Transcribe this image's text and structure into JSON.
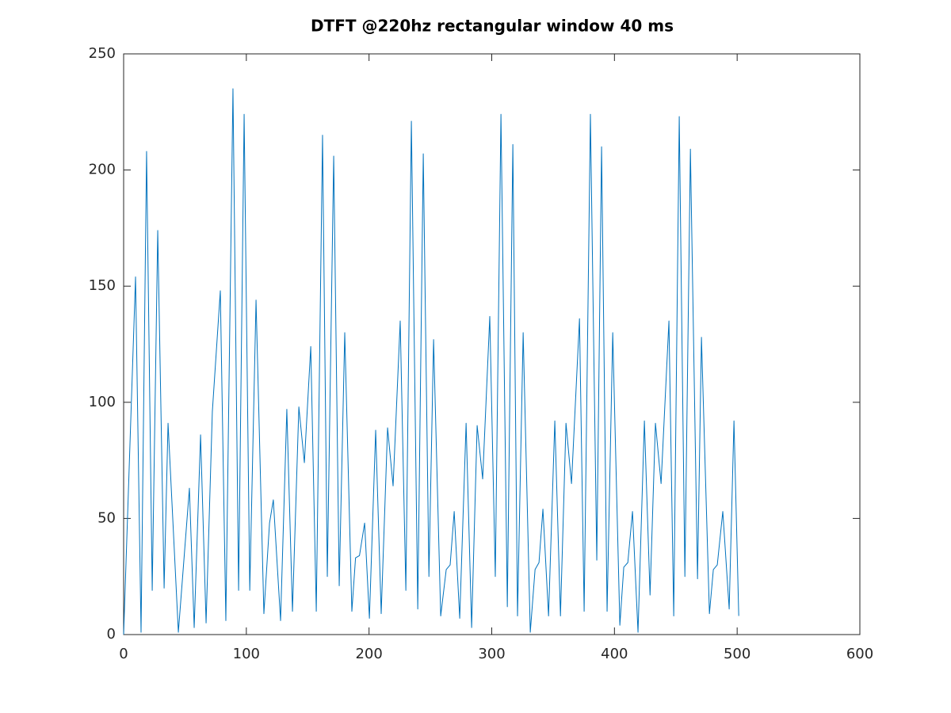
{
  "chart_data": {
    "type": "line",
    "title": "DTFT @220hz rectangular window 40 ms",
    "xlim": [
      0,
      600
    ],
    "xticks": [
      0,
      100,
      200,
      300,
      400,
      500,
      600
    ],
    "ylim": [
      0,
      250
    ],
    "yticks": [
      0,
      50,
      100,
      150,
      200,
      250
    ],
    "grid": false,
    "series": [
      {
        "color": "#0072bd",
        "x": [
          0,
          9.7,
          14.2,
          18.7,
          23.3,
          27.8,
          33,
          36.2,
          44.6,
          53.6,
          57.5,
          62.7,
          67.2,
          72.3,
          78.8,
          83.3,
          89.1,
          93.7,
          98.2,
          102.8,
          107.9,
          114.3,
          118.9,
          122,
          127.9,
          133,
          137.6,
          142.8,
          147.3,
          152.5,
          157,
          162.1,
          166,
          171.2,
          175.7,
          180.2,
          186,
          189,
          192.2,
          196.4,
          200.3,
          205.4,
          209.9,
          215.1,
          219.6,
          225.4,
          230,
          234.5,
          239.7,
          244.2,
          248.8,
          252.6,
          258.4,
          262.9,
          266.1,
          269.4,
          273.9,
          279.1,
          283.6,
          288.1,
          292.6,
          298.4,
          302.9,
          307.5,
          312.7,
          317.2,
          321,
          325.6,
          331.4,
          335.3,
          338.5,
          341.7,
          346.3,
          351.4,
          356,
          360.5,
          365,
          371.5,
          375.3,
          380.4,
          385.6,
          389.5,
          394,
          398.6,
          404.4,
          407.6,
          410.9,
          414.7,
          419.2,
          424.4,
          429,
          433.4,
          438,
          444.4,
          448.3,
          452.8,
          457.4,
          461.9,
          467.7,
          470.9,
          477.4,
          480.6,
          483.8,
          488.3,
          493.5,
          497.4,
          501.3
        ],
        "values": [
          0,
          154,
          1,
          208,
          19,
          174,
          20,
          91,
          1,
          63,
          3,
          86,
          5,
          96,
          148,
          6,
          235,
          19,
          224,
          19,
          144,
          9,
          48,
          58,
          6,
          97,
          10,
          98,
          74,
          124,
          10,
          215,
          25,
          206,
          21,
          130,
          10,
          33,
          34,
          48,
          7,
          88,
          9,
          89,
          64,
          135,
          19,
          221,
          11,
          207,
          25,
          127,
          8,
          28,
          30,
          53,
          7,
          91,
          3,
          90,
          67,
          137,
          25,
          224,
          12,
          211,
          8,
          130,
          1,
          28,
          31,
          54,
          8,
          92,
          8,
          91,
          65,
          136,
          10,
          224,
          32,
          210,
          10,
          130,
          4,
          29,
          31,
          53,
          1,
          92,
          17,
          91,
          65,
          135,
          8,
          223,
          25,
          209,
          24,
          128,
          9,
          28,
          30,
          53,
          11,
          92,
          8
        ]
      }
    ]
  }
}
